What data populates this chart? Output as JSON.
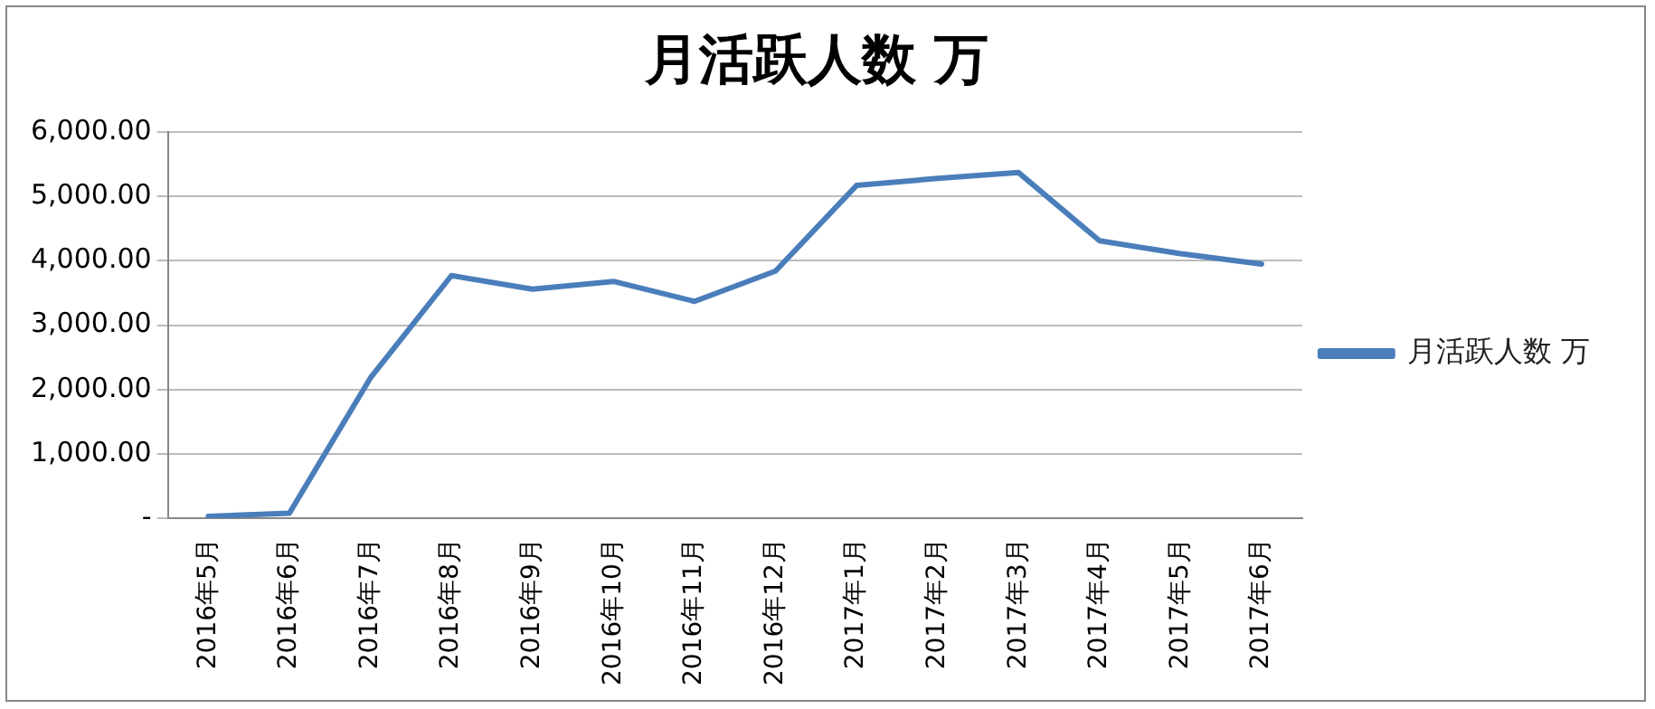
{
  "chart_data": {
    "type": "line",
    "title": "月活跃人数 万",
    "categories": [
      "2016年5月",
      "2016年6月",
      "2016年7月",
      "2016年8月",
      "2016年9月",
      "2016年10月",
      "2016年11月",
      "2016年12月",
      "2017年1月",
      "2017年2月",
      "2017年3月",
      "2017年4月",
      "2017年5月",
      "2017年6月"
    ],
    "series": [
      {
        "name": "月活跃人数 万",
        "color": "#4a7ebb",
        "values": [
          30,
          80,
          2180,
          3770,
          3560,
          3680,
          3370,
          3840,
          5170,
          5280,
          5370,
          4310,
          4110,
          3950
        ]
      }
    ],
    "ylim": [
      0,
      6000
    ],
    "yticks": [
      {
        "value": 0,
        "label": "-"
      },
      {
        "value": 1000,
        "label": "1,000.00"
      },
      {
        "value": 2000,
        "label": "2,000.00"
      },
      {
        "value": 3000,
        "label": "3,000.00"
      },
      {
        "value": 4000,
        "label": "4,000.00"
      },
      {
        "value": 5000,
        "label": "5,000.00"
      },
      {
        "value": 6000,
        "label": "6,000.00"
      }
    ],
    "grid": "y",
    "legend": "right",
    "marker": "none",
    "line_style": "solid"
  }
}
